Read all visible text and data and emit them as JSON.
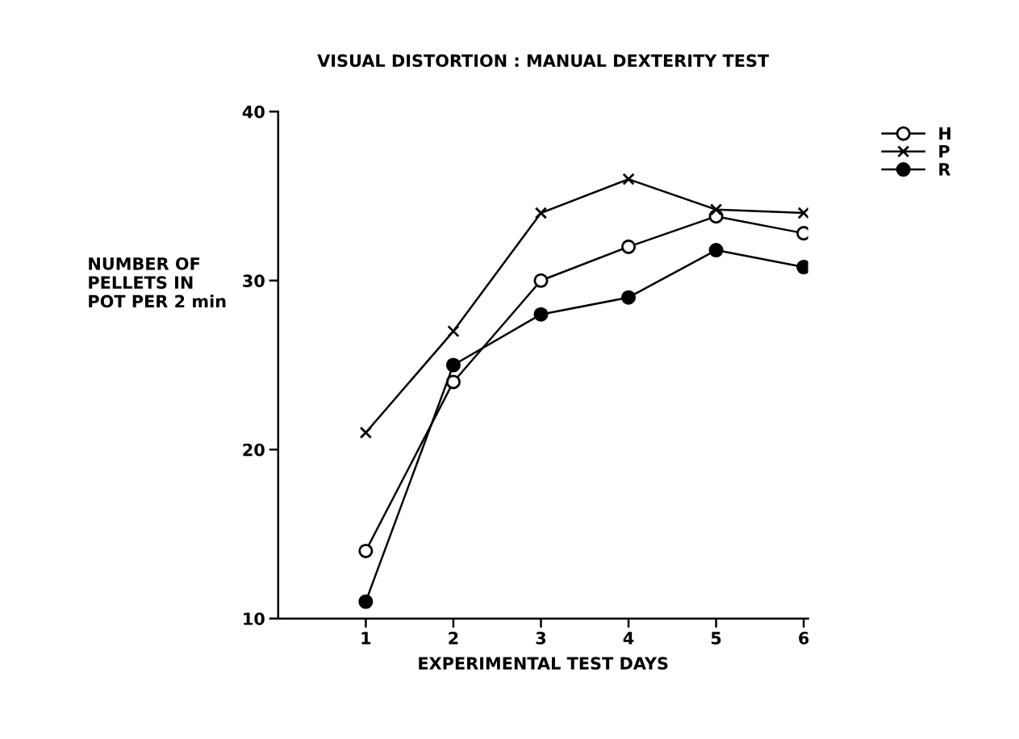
{
  "chart_data": {
    "type": "line",
    "title": "VISUAL DISTORTION : MANUAL DEXTERITY TEST",
    "xlabel": "EXPERIMENTAL TEST DAYS",
    "ylabel": "NUMBER OF\nPELLETS IN\nPOT PER 2 min",
    "x": [
      1,
      2,
      3,
      4,
      5,
      6
    ],
    "series": [
      {
        "name": "H",
        "color": "#000000",
        "marker": "open circle",
        "values": [
          14,
          24,
          30,
          32,
          33.8,
          32.8
        ]
      },
      {
        "name": "P",
        "color": "#000000",
        "marker": "cross",
        "values": [
          21,
          27,
          34,
          36,
          34.2,
          34
        ]
      },
      {
        "name": "R",
        "color": "#000000",
        "marker": "circle",
        "values": [
          11,
          25,
          28,
          29,
          31.8,
          30.8
        ]
      }
    ],
    "xlim": [
      0,
      6.05
    ],
    "xticks": [
      1,
      2,
      3,
      4,
      5,
      6
    ],
    "ylim": [
      10,
      40
    ],
    "yticks": [
      10,
      20,
      30,
      40
    ],
    "grid": false,
    "legend": "top right",
    "line_style": "solid"
  }
}
